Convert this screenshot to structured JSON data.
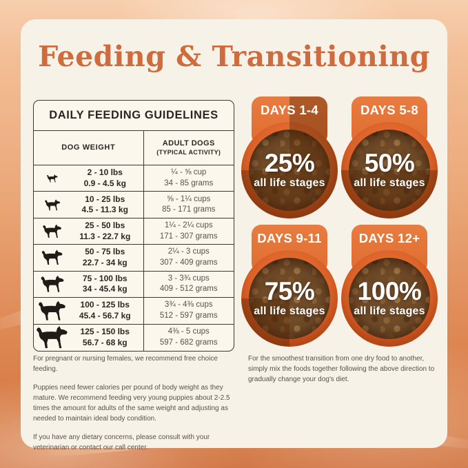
{
  "page": {
    "title": "Feeding & Transitioning"
  },
  "guidelines": {
    "title": "DAILY FEEDING GUIDELINES",
    "col1_header": "DOG WEIGHT",
    "col2_header": "ADULT DOGS",
    "col2_subheader": "(TYPICAL ACTIVITY)",
    "rows": [
      {
        "lbs": "2 - 10 lbs",
        "kg": "0.9 - 4.5 kg",
        "cups": "¼ - ⅝ cup",
        "grams": "34 - 85 grams"
      },
      {
        "lbs": "10 - 25 lbs",
        "kg": "4.5 - 11.3 kg",
        "cups": "⅝ - 1¼ cups",
        "grams": "85 - 171 grams"
      },
      {
        "lbs": "25 - 50 lbs",
        "kg": "11.3 - 22.7 kg",
        "cups": "1¼ - 2¼ cups",
        "grams": "171 - 307 grams"
      },
      {
        "lbs": "50 - 75 lbs",
        "kg": "22.7 - 34 kg",
        "cups": "2¼ - 3 cups",
        "grams": "307 - 409 grams"
      },
      {
        "lbs": "75 - 100 lbs",
        "kg": "34 - 45.4 kg",
        "cups": "3 - 3¾ cups",
        "grams": "409 - 512 grams"
      },
      {
        "lbs": "100 - 125 lbs",
        "kg": "45.4 - 56.7 kg",
        "cups": "3¾ - 4⅜ cups",
        "grams": "512 - 597 grams"
      },
      {
        "lbs": "125 - 150 lbs",
        "kg": "56.7 - 68 kg",
        "cups": "4⅜ - 5 cups",
        "grams": "597 - 682 grams"
      }
    ]
  },
  "transition": {
    "bowls": [
      {
        "days": "DAYS 1-4",
        "percent": "25%",
        "percent_value": 25,
        "caption": "all life stages"
      },
      {
        "days": "DAYS 5-8",
        "percent": "50%",
        "percent_value": 50,
        "caption": "all life stages"
      },
      {
        "days": "DAYS 9-11",
        "percent": "75%",
        "percent_value": 75,
        "caption": "all life stages"
      },
      {
        "days": "DAYS 12+",
        "percent": "100%",
        "percent_value": 100,
        "caption": "all life stages"
      }
    ]
  },
  "notes_left": {
    "p1": "For pregnant or nursing females, we recommend free choice feeding.",
    "p2": "Puppies need fewer calories per pound of body weight as they mature. We recommend feeding very young puppies about 2-2.5 times the amount for adults of the same weight and adjusting as needed to maintain ideal body condition.",
    "p3": "If you have any dietary concerns, please consult with your veterinarian or contact our call center."
  },
  "notes_right": {
    "p1": "For the smoothest transition from one dry food to another, simply mix the foods together following the above direction to gradually change your dog's diet."
  },
  "colors": {
    "accent_orange": "#CF6B3D",
    "badge_orange": "#E4763A",
    "bowl_rim_orange": "#D55F27",
    "card_cream": "#F7F2E7",
    "text_dark": "#2A2723",
    "text_gray": "#56524B",
    "overlay_dark": "rgba(84,38,5,0.40)"
  }
}
